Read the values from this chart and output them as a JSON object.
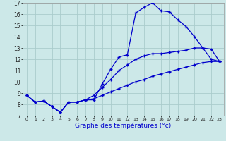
{
  "xlabel": "Graphe des températures (°c)",
  "bg_color": "#cce8e8",
  "grid_color": "#aacccc",
  "line_color": "#0000cc",
  "xlim": [
    -0.5,
    23.5
  ],
  "ylim": [
    7,
    17
  ],
  "yticks": [
    7,
    8,
    9,
    10,
    11,
    12,
    13,
    14,
    15,
    16,
    17
  ],
  "xticks": [
    0,
    1,
    2,
    3,
    4,
    5,
    6,
    7,
    8,
    9,
    10,
    11,
    12,
    13,
    14,
    15,
    16,
    17,
    18,
    19,
    20,
    21,
    22,
    23
  ],
  "line1_x": [
    0,
    1,
    2,
    3,
    4,
    5,
    6,
    7,
    8,
    9,
    10,
    11,
    12,
    13,
    14,
    15,
    16,
    17,
    18,
    19,
    20,
    21,
    22,
    23
  ],
  "line1_y": [
    8.8,
    8.2,
    8.3,
    7.8,
    7.3,
    8.2,
    8.2,
    8.4,
    8.4,
    9.8,
    11.1,
    12.2,
    12.4,
    16.1,
    16.6,
    17.0,
    16.3,
    16.2,
    15.5,
    14.9,
    14.0,
    13.0,
    12.0,
    11.8
  ],
  "line2_x": [
    0,
    1,
    2,
    3,
    4,
    5,
    6,
    7,
    8,
    9,
    10,
    11,
    12,
    13,
    14,
    15,
    16,
    17,
    18,
    19,
    20,
    21,
    22,
    23
  ],
  "line2_y": [
    8.8,
    8.2,
    8.3,
    7.8,
    7.3,
    8.2,
    8.2,
    8.4,
    8.8,
    9.5,
    10.2,
    11.0,
    11.5,
    12.0,
    12.3,
    12.5,
    12.5,
    12.6,
    12.7,
    12.8,
    13.0,
    13.0,
    12.9,
    11.8
  ],
  "line3_x": [
    0,
    1,
    2,
    3,
    4,
    5,
    6,
    7,
    8,
    9,
    10,
    11,
    12,
    13,
    14,
    15,
    16,
    17,
    18,
    19,
    20,
    21,
    22,
    23
  ],
  "line3_y": [
    8.8,
    8.2,
    8.3,
    7.8,
    7.3,
    8.2,
    8.2,
    8.4,
    8.5,
    8.8,
    9.1,
    9.4,
    9.7,
    10.0,
    10.2,
    10.5,
    10.7,
    10.9,
    11.1,
    11.3,
    11.5,
    11.7,
    11.8,
    11.8
  ]
}
